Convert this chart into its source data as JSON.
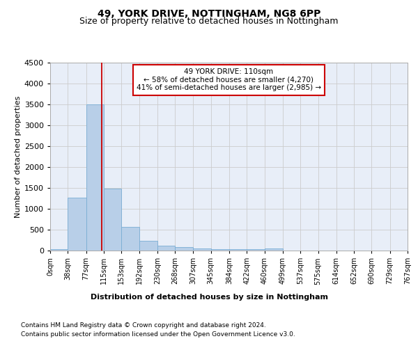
{
  "title1": "49, YORK DRIVE, NOTTINGHAM, NG8 6PP",
  "title2": "Size of property relative to detached houses in Nottingham",
  "xlabel": "Distribution of detached houses by size in Nottingham",
  "ylabel": "Number of detached properties",
  "bin_edges": [
    0,
    38,
    77,
    115,
    153,
    192,
    230,
    268,
    307,
    345,
    384,
    422,
    460,
    499,
    537,
    575,
    614,
    652,
    690,
    729,
    767
  ],
  "bar_heights": [
    40,
    1270,
    3500,
    1480,
    575,
    240,
    120,
    85,
    55,
    35,
    30,
    30,
    55,
    0,
    0,
    0,
    0,
    0,
    0,
    0
  ],
  "bar_color": "#b8cfe8",
  "bar_edge_color": "#7aadd4",
  "grid_color": "#cccccc",
  "bg_color": "#e8eef8",
  "vline_x": 110,
  "vline_color": "#cc0000",
  "annotation_line1": "49 YORK DRIVE: 110sqm",
  "annotation_line2": "← 58% of detached houses are smaller (4,270)",
  "annotation_line3": "41% of semi-detached houses are larger (2,985) →",
  "annotation_box_color": "#cc0000",
  "ylim": [
    0,
    4500
  ],
  "yticks": [
    0,
    500,
    1000,
    1500,
    2000,
    2500,
    3000,
    3500,
    4000,
    4500
  ],
  "tick_labels": [
    "0sqm",
    "38sqm",
    "77sqm",
    "115sqm",
    "153sqm",
    "192sqm",
    "230sqm",
    "268sqm",
    "307sqm",
    "345sqm",
    "384sqm",
    "422sqm",
    "460sqm",
    "499sqm",
    "537sqm",
    "575sqm",
    "614sqm",
    "652sqm",
    "690sqm",
    "729sqm",
    "767sqm"
  ],
  "footnote1": "Contains HM Land Registry data © Crown copyright and database right 2024.",
  "footnote2": "Contains public sector information licensed under the Open Government Licence v3.0.",
  "title1_fontsize": 10,
  "title2_fontsize": 9,
  "axis_label_fontsize": 8,
  "ylabel_fontsize": 8,
  "tick_fontsize": 7,
  "annotation_fontsize": 7.5,
  "footnote_fontsize": 6.5
}
